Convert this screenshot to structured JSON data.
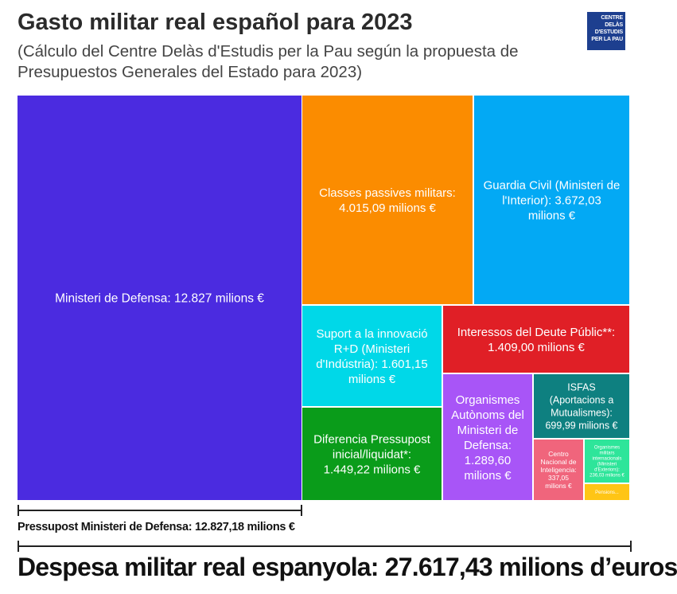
{
  "title": "Gasto militar real español para 2023",
  "subtitle": "(Cálculo del Centre Delàs d'Estudis per la Pau según la propuesta de Presupuestos Generales del Estado para 2023)",
  "logo": {
    "lines": [
      "CENTRE DELÀS",
      "D'ESTUDIS",
      "PER LA PAU"
    ],
    "color": "#1d3f8f"
  },
  "chart_data": {
    "type": "treemap",
    "unit": "millions €",
    "items": [
      {
        "lines": [
          "Ministeri de Defensa: 12.827 milions €"
        ],
        "value": 12827.18,
        "color": "#4b2be0"
      },
      {
        "lines": [
          "Classes passives militars:",
          "4.015,09 milions €"
        ],
        "value": 4015.09,
        "color": "#fb8c00"
      },
      {
        "lines": [
          "Guardia Civil (Ministeri de",
          "l'Interior): 3.672,03",
          "milions €"
        ],
        "value": 3672.03,
        "color": "#03a9f4"
      },
      {
        "lines": [
          "Suport a la innovació",
          "R+D (Ministeri",
          "d'Indústria): 1.601,15",
          "milions €"
        ],
        "value": 1601.15,
        "color": "#00d8e8"
      },
      {
        "lines": [
          "Interessos del Deute Públic**:",
          "1.409,00 milions €"
        ],
        "value": 1409.0,
        "color": "#e01f26"
      },
      {
        "lines": [
          "Diferencia Pressupost",
          "inicial/liquidat*:",
          "1.449,22 milions €"
        ],
        "value": 1449.22,
        "color": "#0a9c1a"
      },
      {
        "lines": [
          "Organismes",
          "Autònoms del",
          "Ministeri de",
          "Defensa:",
          "1.289,60",
          "milions €"
        ],
        "value": 1289.6,
        "color": "#a855f7"
      },
      {
        "lines": [
          "ISFAS",
          "(Aportacions a",
          "Mutualismes):",
          "699,99 milions €"
        ],
        "value": 699.99,
        "color": "#0e8080"
      },
      {
        "lines": [
          "Centro",
          "Nacional de",
          "Inteligencia:",
          "337,05",
          "milions €"
        ],
        "value": 337.05,
        "color": "#f0657c"
      },
      {
        "lines": [
          "Organismes",
          "militars",
          "internacionals",
          "(Ministeri",
          "d'Exteriors):",
          "236,03 milions €"
        ],
        "value": 236.03,
        "color": "#2ee59a"
      },
      {
        "lines": [
          "Pensions..."
        ],
        "value": null,
        "color": "#ffc515"
      }
    ]
  },
  "budget_bracket": {
    "label": "Pressupost Ministeri de Defensa: 12.827,18 milions €"
  },
  "total_bracket": {
    "label": "Despesa militar real espanyola: 27.617,43 milions d’euros"
  }
}
